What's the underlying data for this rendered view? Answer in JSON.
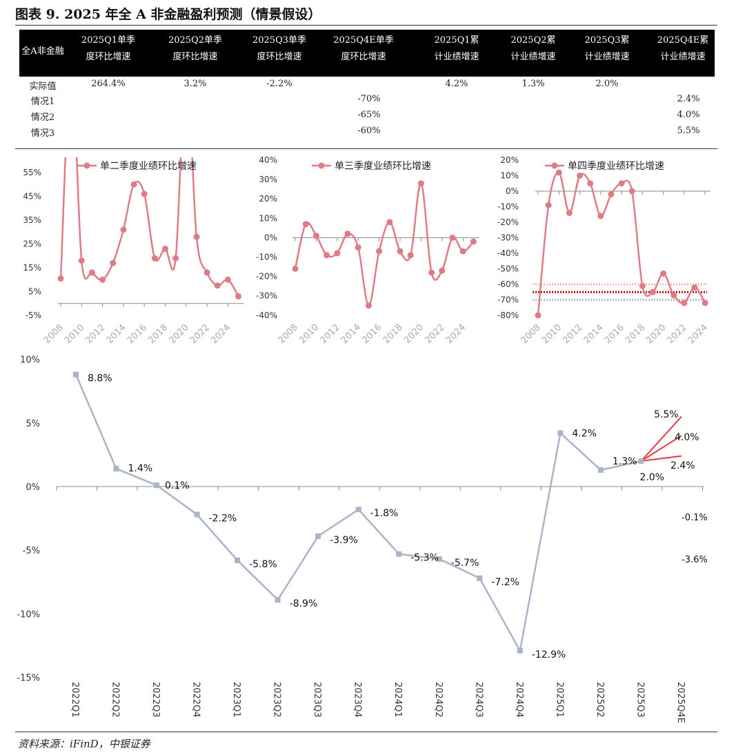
{
  "title": "图表 9. 2025 年全 A 非金融盈利预测（情景假设）",
  "table": {
    "headers": [
      [
        "全A非金融",
        ""
      ],
      [
        "2025Q1单季",
        "度环比增速"
      ],
      [
        "2025Q2单季",
        "度环比增速"
      ],
      [
        "2025Q3单季",
        "度环比增速"
      ],
      [
        "2025Q4E单季",
        "度环比增速"
      ],
      [
        "2025Q1累",
        "计业绩增速"
      ],
      [
        "2025Q2累",
        "计业绩增速"
      ],
      [
        "2025Q3累",
        "计业绩增速"
      ],
      [
        "2025Q4E累",
        "计业绩增速"
      ]
    ],
    "rows": [
      [
        "实际值",
        "264.4%",
        "3.2%",
        "-2.2%",
        "",
        "4.2%",
        "1.3%",
        "2.0%",
        ""
      ],
      [
        "情况1",
        "",
        "",
        "",
        "-70%",
        "",
        "",
        "",
        "2.4%"
      ],
      [
        "情况2",
        "",
        "",
        "",
        "-65%",
        "",
        "",
        "",
        "4.0%"
      ],
      [
        "情况3",
        "",
        "",
        "",
        "-60%",
        "",
        "",
        "",
        "5.5%"
      ]
    ]
  },
  "source": "资料来源：iFinD，中银证券",
  "colors": {
    "pink": "#e07b85",
    "grey": "#a9b4c8",
    "red": "#e8383d"
  },
  "chart_data": [
    {
      "type": "line",
      "legend": "单二季度业绩环比增速",
      "x": [
        2008,
        2009,
        2010,
        2011,
        2012,
        2013,
        2014,
        2015,
        2016,
        2017,
        2018,
        2019,
        2020,
        2021,
        2022,
        2023,
        2024,
        2025
      ],
      "values": [
        10.5,
        100,
        18,
        13,
        10,
        17,
        31,
        50,
        46,
        19,
        23,
        19,
        100,
        28,
        13,
        7.5,
        10,
        3
      ],
      "ylim": [
        -5,
        60
      ],
      "yticks": [
        -5,
        5,
        15,
        25,
        35,
        45,
        55
      ],
      "xticks": [
        "2008",
        "2010",
        "2012",
        "2014",
        "2016",
        "2018",
        "2020",
        "2022",
        "2024"
      ]
    },
    {
      "type": "line",
      "legend": "单三季度业绩环比增速",
      "x": [
        2008,
        2009,
        2010,
        2011,
        2012,
        2013,
        2014,
        2015,
        2016,
        2017,
        2018,
        2019,
        2020,
        2021,
        2022,
        2023,
        2024,
        2025
      ],
      "values": [
        -16,
        7,
        1,
        -9,
        -8,
        2,
        -5,
        -35,
        -7,
        8,
        -7,
        -9,
        28,
        -18,
        -17,
        0,
        -7,
        -2
      ],
      "ylim": [
        -40,
        40
      ],
      "yticks": [
        -40,
        -30,
        -20,
        -10,
        0,
        10,
        20,
        30,
        40
      ],
      "xticks": [
        "2008",
        "2010",
        "2012",
        "2014",
        "2016",
        "2018",
        "2020",
        "2022",
        "2024"
      ]
    },
    {
      "type": "line",
      "legend": "单四季度业绩环比增速",
      "x": [
        2008,
        2009,
        2010,
        2011,
        2012,
        2013,
        2014,
        2015,
        2016,
        2017,
        2018,
        2019,
        2020,
        2021,
        2022,
        2023,
        2024
      ],
      "values": [
        -80,
        -9,
        12,
        -14,
        10,
        5,
        -16,
        -2,
        5,
        0,
        -61,
        -65,
        -53,
        -67,
        -72,
        -62,
        -72
      ],
      "ylim": [
        -80,
        20
      ],
      "yticks": [
        -80,
        -70,
        -60,
        -50,
        -40,
        -30,
        -20,
        -10,
        0,
        10,
        20
      ],
      "xticks": [
        "2008",
        "2010",
        "2012",
        "2014",
        "2016",
        "2018",
        "2020",
        "2022",
        "2024"
      ],
      "reference_lines": [
        {
          "value": -60,
          "color": "#f5b8b8"
        },
        {
          "value": -65,
          "color": "#c00000"
        },
        {
          "value": -70,
          "color": "#b4bcd6"
        }
      ]
    },
    {
      "type": "line",
      "categories": [
        "2022Q1",
        "2022Q2",
        "2022Q3",
        "2022Q4",
        "2023Q1",
        "2023Q2",
        "2023Q3",
        "2023Q4",
        "2024Q1",
        "2024Q2",
        "2024Q3",
        "2024Q4",
        "2025Q1",
        "2025Q2",
        "2025Q3",
        "2025Q4E"
      ],
      "values": [
        8.8,
        1.4,
        0.1,
        -2.2,
        -5.8,
        -8.9,
        -3.9,
        -1.8,
        -5.3,
        -5.7,
        -7.2,
        -12.9,
        4.2,
        1.3,
        2.0
      ],
      "labels": [
        "8.8%",
        "1.4%",
        "0.1%",
        "-2.2%",
        "-5.8%",
        "-8.9%",
        "-3.9%",
        "-1.8%",
        "-5.3%",
        "-5.7%",
        "-7.2%",
        "-12.9%",
        "4.2%",
        "1.3%",
        "2.0%"
      ],
      "scenarios": [
        {
          "value": 5.5,
          "label": "5.5%"
        },
        {
          "value": 4.0,
          "label": "4.0%"
        },
        {
          "value": 2.4,
          "label": "2.4%"
        }
      ],
      "extra_labels": [
        "-0.1%",
        "-3.6%"
      ],
      "ylim": [
        -15,
        10
      ],
      "yticks": [
        -15,
        -10,
        -5,
        0,
        5,
        10
      ],
      "ytick_labels": [
        "-15%",
        "-10%",
        "-5%",
        "0%",
        "5%",
        "10%"
      ]
    }
  ]
}
